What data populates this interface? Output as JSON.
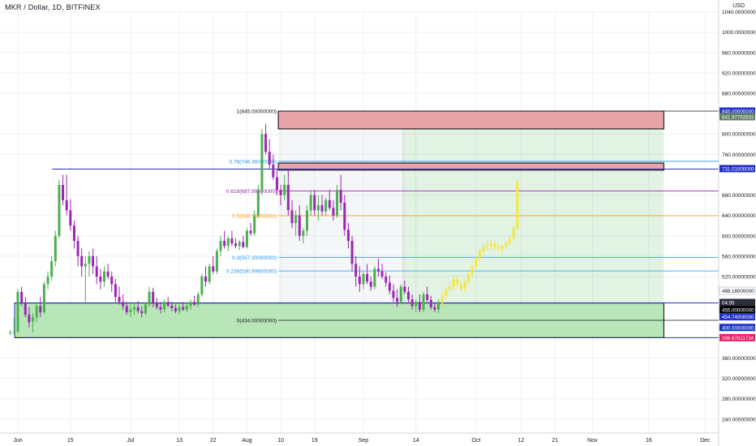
{
  "header": {
    "symbol_title": "MKR / Dollar, 1D, BITFINEX",
    "currency": "USD"
  },
  "colors": {
    "up": "#4caf50",
    "down": "#9c27b0",
    "projection": "#f5e642",
    "grid": "#eef0f3",
    "axis_text": "#131722",
    "blue_line": "#2130c4"
  },
  "chart_data": {
    "type": "candlestick",
    "x_tick_labels": [
      "Jun",
      "15",
      "Jul",
      "13",
      "22",
      "Aug",
      "10",
      "19",
      "Sep",
      "14",
      "Oct",
      "12",
      "21",
      "Nov",
      "16",
      "Dec"
    ],
    "x_tick_days": [
      0,
      14,
      30,
      43,
      52,
      61,
      70,
      79,
      92,
      106,
      122,
      134,
      143,
      153,
      168,
      183
    ],
    "y_range": [
      200,
      1100
    ],
    "y_ticks": [
      {
        "v": 1040,
        "label": "1040.00000000"
      },
      {
        "v": 1000,
        "label": "1000.00000000"
      },
      {
        "v": 960,
        "label": "960.00000000"
      },
      {
        "v": 920,
        "label": "920.00000000"
      },
      {
        "v": 880,
        "label": "880.00000000"
      },
      {
        "v": 800,
        "label": "800.00000000"
      },
      {
        "v": 760,
        "label": "760.00000000"
      },
      {
        "v": 680,
        "label": "680.00000000"
      },
      {
        "v": 640,
        "label": "640.00000000"
      },
      {
        "v": 600,
        "label": "600.00000000"
      },
      {
        "v": 560,
        "label": "560.00000000"
      },
      {
        "v": 520,
        "label": "520.00000000"
      },
      {
        "v": 360,
        "label": "360.00000000"
      },
      {
        "v": 320,
        "label": "320.00000000"
      },
      {
        "v": 280,
        "label": "280.00000000"
      },
      {
        "v": 240,
        "label": "240.00000000"
      }
    ],
    "price_tags": [
      {
        "v": 845.0,
        "label": "845.00000000",
        "bg": "#2130c4",
        "fg": "#ffffff"
      },
      {
        "v": 834.0,
        "label": "841.97752631",
        "bg": "#5f7f63",
        "fg": "#ffffff"
      },
      {
        "v": 732.0,
        "label": "731.01000000",
        "bg": "#2130c4",
        "fg": "#ffffff"
      },
      {
        "v": 492.0,
        "label": "488.18000000",
        "bg": "#ffffff",
        "fg": "#131722"
      },
      {
        "v": 469.0,
        "label": "04:55",
        "bg": "#2a2e39",
        "fg": "#ffffff"
      },
      {
        "v": 455.0,
        "label": "455.00000000",
        "bg": "#000000",
        "fg": "#ffffff"
      },
      {
        "v": 441.0,
        "label": "454.74000000",
        "bg": "#2130c4",
        "fg": "#ffffff"
      },
      {
        "v": 420.0,
        "label": "400.00000000",
        "bg": "#2130c4",
        "fg": "#ffffff"
      },
      {
        "v": 400.0,
        "label": "396.67811734",
        "bg": "#e91e63",
        "fg": "#ffffff"
      }
    ],
    "fib_levels": [
      {
        "ratio": "1",
        "label": "1(845.00000000)",
        "v": 845.0,
        "color": "#131722"
      },
      {
        "ratio": "0.76",
        "label": "0.76(746.36000000)",
        "v": 746.36,
        "color": "#2196f3"
      },
      {
        "ratio": "0.618",
        "label": "0.618(687.99800000)",
        "v": 687.998,
        "color": "#9c27b0"
      },
      {
        "ratio": "0.5",
        "label": "0.5(639.50000000)",
        "v": 639.5,
        "color": "#ff9800"
      },
      {
        "ratio": "0.3",
        "label": "0.3(557.30000000)",
        "v": 557.3,
        "color": "#2196f3"
      },
      {
        "ratio": "0.236",
        "label": "0.236(530.99600000)",
        "v": 530.996,
        "color": "#2196f3"
      },
      {
        "ratio": "0",
        "label": "0(434.00000000)",
        "v": 434.0,
        "color": "#131722"
      }
    ],
    "horizontal_lines": [
      {
        "v": 731.0,
        "from_day": 10,
        "color": "#2130c4"
      },
      {
        "v": 468.0,
        "from_day": 0,
        "color": "#2130c4"
      },
      {
        "v": 400.0,
        "from_day": 3,
        "color": "#2130c4"
      }
    ],
    "zones": [
      {
        "name": "resistance-top",
        "v_low": 810,
        "v_high": 845,
        "from_day": 70,
        "to_day": 172,
        "fill": "#e8a3a8",
        "stroke": "#000000"
      },
      {
        "name": "resistance-mid",
        "v_low": 729,
        "v_high": 743,
        "from_day": 70,
        "to_day": 172,
        "fill": "#e8a3a8",
        "stroke": "#000000"
      },
      {
        "name": "support",
        "v_low": 400,
        "v_high": 468,
        "from_day": 0,
        "to_day": 172,
        "fill": "#b8e6b8",
        "stroke": "#000000"
      },
      {
        "name": "target-area",
        "v_low": 400,
        "v_high": 845,
        "from_day": 103,
        "to_day": 172,
        "fill": "rgba(76,175,80,0.16)",
        "stroke": "none"
      },
      {
        "name": "fib-band-gray",
        "v_low": 434,
        "v_high": 845,
        "from_day": 70,
        "to_day": 103,
        "fill": "rgba(170,180,190,0.12)",
        "stroke": "none"
      }
    ],
    "candles": [
      [
        -2,
        410,
        415,
        405,
        410
      ],
      [
        -1,
        410,
        440,
        405,
        412
      ],
      [
        0,
        412,
        495,
        408,
        490
      ],
      [
        1,
        490,
        500,
        462,
        468
      ],
      [
        2,
        468,
        480,
        440,
        445
      ],
      [
        3,
        445,
        460,
        420,
        430
      ],
      [
        4,
        432,
        448,
        410,
        440
      ],
      [
        5,
        440,
        470,
        430,
        462
      ],
      [
        6,
        462,
        480,
        440,
        450
      ],
      [
        7,
        450,
        510,
        446,
        505
      ],
      [
        8,
        505,
        530,
        495,
        520
      ],
      [
        9,
        520,
        560,
        512,
        550
      ],
      [
        10,
        550,
        610,
        540,
        600
      ],
      [
        11,
        600,
        710,
        595,
        700
      ],
      [
        12,
        700,
        720,
        660,
        670
      ],
      [
        13,
        670,
        720,
        640,
        650
      ],
      [
        14,
        650,
        672,
        610,
        620
      ],
      [
        15,
        620,
        630,
        575,
        590
      ],
      [
        16,
        590,
        600,
        540,
        560
      ],
      [
        17,
        560,
        575,
        520,
        540
      ],
      [
        18,
        540,
        560,
        470,
        545
      ],
      [
        19,
        545,
        570,
        520,
        560
      ],
      [
        20,
        560,
        575,
        525,
        540
      ],
      [
        21,
        540,
        560,
        505,
        520
      ],
      [
        22,
        520,
        535,
        495,
        510
      ],
      [
        23,
        510,
        540,
        500,
        530
      ],
      [
        24,
        530,
        545,
        515,
        520
      ],
      [
        25,
        520,
        530,
        490,
        505
      ],
      [
        26,
        505,
        515,
        470,
        480
      ],
      [
        27,
        480,
        500,
        465,
        470
      ],
      [
        28,
        470,
        485,
        455,
        462
      ],
      [
        29,
        462,
        470,
        445,
        450
      ],
      [
        30,
        450,
        465,
        440,
        455
      ],
      [
        31,
        455,
        470,
        445,
        460
      ],
      [
        32,
        460,
        472,
        448,
        452
      ],
      [
        33,
        452,
        462,
        440,
        448
      ],
      [
        34,
        448,
        470,
        444,
        465
      ],
      [
        35,
        465,
        500,
        460,
        490
      ],
      [
        36,
        490,
        498,
        460,
        468
      ],
      [
        37,
        468,
        478,
        455,
        460
      ],
      [
        38,
        460,
        470,
        448,
        455
      ],
      [
        39,
        455,
        475,
        450,
        470
      ],
      [
        40,
        470,
        480,
        460,
        463
      ],
      [
        41,
        463,
        470,
        452,
        458
      ],
      [
        42,
        458,
        465,
        448,
        452
      ],
      [
        43,
        452,
        465,
        446,
        460
      ],
      [
        44,
        460,
        470,
        452,
        455
      ],
      [
        45,
        455,
        468,
        450,
        462
      ],
      [
        46,
        462,
        475,
        455,
        470
      ],
      [
        47,
        470,
        482,
        462,
        465
      ],
      [
        48,
        465,
        490,
        460,
        485
      ],
      [
        49,
        485,
        525,
        480,
        520
      ],
      [
        50,
        520,
        540,
        500,
        510
      ],
      [
        51,
        510,
        545,
        505,
        540
      ],
      [
        52,
        540,
        560,
        525,
        530
      ],
      [
        53,
        530,
        575,
        525,
        570
      ],
      [
        54,
        570,
        600,
        560,
        590
      ],
      [
        55,
        590,
        610,
        575,
        580
      ],
      [
        56,
        580,
        600,
        570,
        595
      ],
      [
        57,
        595,
        610,
        580,
        585
      ],
      [
        58,
        585,
        595,
        575,
        580
      ],
      [
        59,
        580,
        592,
        572,
        588
      ],
      [
        60,
        588,
        600,
        575,
        578
      ],
      [
        61,
        578,
        615,
        575,
        610
      ],
      [
        62,
        610,
        625,
        600,
        605
      ],
      [
        63,
        605,
        650,
        600,
        640
      ],
      [
        64,
        640,
        700,
        635,
        690
      ],
      [
        65,
        690,
        810,
        680,
        800
      ],
      [
        66,
        800,
        820,
        760,
        765
      ],
      [
        67,
        765,
        790,
        730,
        740
      ],
      [
        68,
        740,
        760,
        710,
        715
      ],
      [
        69,
        715,
        730,
        680,
        690
      ],
      [
        70,
        690,
        700,
        660,
        680
      ],
      [
        71,
        680,
        720,
        670,
        700
      ],
      [
        72,
        700,
        730,
        640,
        650
      ],
      [
        73,
        650,
        670,
        615,
        625
      ],
      [
        74,
        625,
        650,
        600,
        640
      ],
      [
        75,
        640,
        660,
        590,
        600
      ],
      [
        76,
        600,
        615,
        585,
        610
      ],
      [
        77,
        610,
        660,
        600,
        650
      ],
      [
        78,
        650,
        690,
        640,
        680
      ],
      [
        79,
        680,
        690,
        640,
        650
      ],
      [
        80,
        650,
        680,
        630,
        660
      ],
      [
        81,
        660,
        680,
        640,
        648
      ],
      [
        82,
        648,
        675,
        640,
        670
      ],
      [
        83,
        670,
        690,
        650,
        655
      ],
      [
        84,
        655,
        670,
        630,
        640
      ],
      [
        85,
        640,
        700,
        635,
        690
      ],
      [
        86,
        690,
        720,
        650,
        665
      ],
      [
        87,
        665,
        680,
        600,
        612
      ],
      [
        88,
        612,
        625,
        575,
        590
      ],
      [
        89,
        590,
        600,
        530,
        545
      ],
      [
        90,
        545,
        560,
        500,
        520
      ],
      [
        91,
        520,
        540,
        490,
        505
      ],
      [
        92,
        505,
        530,
        495,
        525
      ],
      [
        93,
        525,
        545,
        505,
        510
      ],
      [
        94,
        510,
        520,
        492,
        500
      ],
      [
        95,
        500,
        540,
        495,
        535
      ],
      [
        96,
        535,
        555,
        520,
        530
      ],
      [
        97,
        530,
        545,
        515,
        520
      ],
      [
        98,
        520,
        528,
        500,
        508
      ],
      [
        99,
        508,
        522,
        485,
        492
      ],
      [
        100,
        492,
        505,
        470,
        478
      ],
      [
        101,
        478,
        495,
        460,
        470
      ],
      [
        102,
        470,
        505,
        465,
        500
      ],
      [
        103,
        500,
        512,
        485,
        490
      ],
      [
        104,
        490,
        500,
        468,
        475
      ],
      [
        105,
        475,
        485,
        455,
        462
      ],
      [
        106,
        462,
        475,
        450,
        470
      ],
      [
        107,
        470,
        485,
        450,
        455
      ],
      [
        108,
        455,
        490,
        450,
        485
      ],
      [
        109,
        485,
        500,
        470,
        474
      ],
      [
        110,
        474,
        482,
        455,
        460
      ],
      [
        111,
        460,
        468,
        450,
        455
      ],
      [
        112,
        455,
        475,
        448,
        468
      ]
    ],
    "projection": [
      [
        113,
        468,
        488,
        462,
        482
      ],
      [
        114,
        482,
        500,
        476,
        495
      ],
      [
        115,
        495,
        510,
        490,
        500
      ],
      [
        116,
        500,
        520,
        495,
        515
      ],
      [
        117,
        515,
        522,
        500,
        505
      ],
      [
        118,
        505,
        512,
        490,
        495
      ],
      [
        119,
        495,
        515,
        490,
        510
      ],
      [
        120,
        510,
        530,
        505,
        525
      ],
      [
        121,
        525,
        545,
        520,
        540
      ],
      [
        122,
        540,
        560,
        535,
        555
      ],
      [
        123,
        555,
        575,
        550,
        570
      ],
      [
        124,
        570,
        585,
        560,
        578
      ],
      [
        125,
        578,
        590,
        570,
        580
      ],
      [
        126,
        580,
        592,
        570,
        585
      ],
      [
        127,
        585,
        590,
        572,
        578
      ],
      [
        128,
        578,
        585,
        570,
        575
      ],
      [
        129,
        575,
        582,
        568,
        580
      ],
      [
        130,
        580,
        590,
        575,
        586
      ],
      [
        131,
        586,
        600,
        582,
        595
      ],
      [
        132,
        595,
        620,
        590,
        615
      ],
      [
        133,
        615,
        712,
        610,
        705
      ]
    ]
  }
}
